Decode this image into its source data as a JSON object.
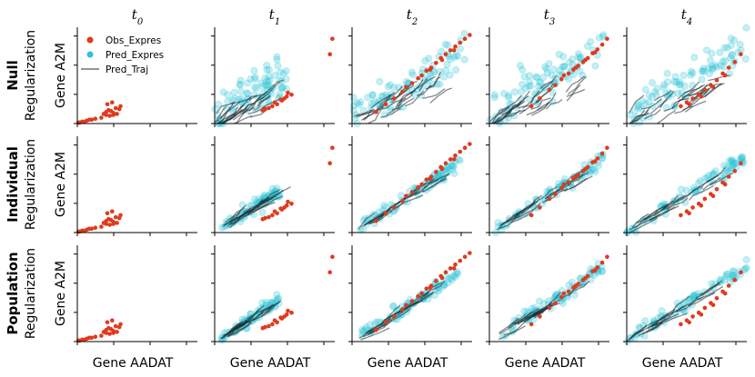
{
  "chart_data": {
    "type": "scatter",
    "description_layout": "grid 3 rows x 5 columns",
    "columns": [
      {
        "t": "t",
        "sub": "0"
      },
      {
        "t": "t",
        "sub": "1"
      },
      {
        "t": "t",
        "sub": "2"
      },
      {
        "t": "t",
        "sub": "3"
      },
      {
        "t": "t",
        "sub": "4"
      }
    ],
    "rows": [
      {
        "bold": "Null",
        "regular": "Regularization"
      },
      {
        "bold": "Individual",
        "regular": "Regularization"
      },
      {
        "bold": "Population",
        "regular": "Regularization"
      }
    ],
    "ylabel": "Gene A2M",
    "xlabel": "Gene AADAT",
    "xlim": [
      0,
      1
    ],
    "ylim": [
      0,
      1
    ],
    "legend": {
      "position": "top-left of first panel",
      "entries": [
        {
          "label": "Obs_Expres",
          "color": "#e03a1e",
          "kind": "point"
        },
        {
          "label": "Pred_Expres",
          "color": "#2ec4d8",
          "kind": "point"
        },
        {
          "label": "Pred_Traj",
          "color": "#707070",
          "kind": "line"
        }
      ]
    },
    "observed_points": [
      {
        "col": 0,
        "x": [
          0.01,
          0.02,
          0.04,
          0.06,
          0.08,
          0.1,
          0.12,
          0.15,
          0.2,
          0.22,
          0.24,
          0.26,
          0.28,
          0.3,
          0.32,
          0.35,
          0.24,
          0.27,
          0.3,
          0.33,
          0.36,
          0.25,
          0.29
        ],
        "y": [
          0.01,
          0.01,
          0.02,
          0.02,
          0.03,
          0.04,
          0.04,
          0.05,
          0.06,
          0.1,
          0.12,
          0.14,
          0.13,
          0.11,
          0.16,
          0.15,
          0.09,
          0.08,
          0.09,
          0.1,
          0.18,
          0.2,
          0.22
        ]
      },
      {
        "col": 1,
        "x": [
          0.55,
          0.5,
          0.6,
          0.64,
          0.58,
          0.52,
          0.48,
          0.42,
          0.4,
          0.61,
          0.56,
          0.45,
          0.96,
          0.98
        ],
        "y": [
          0.25,
          0.22,
          0.28,
          0.3,
          0.26,
          0.2,
          0.18,
          0.15,
          0.14,
          0.32,
          0.24,
          0.16,
          0.72,
          0.88
        ]
      },
      {
        "col": 2,
        "x": [
          0.2,
          0.28,
          0.35,
          0.42,
          0.5,
          0.58,
          0.62,
          0.66,
          0.7,
          0.74,
          0.78,
          0.82,
          0.86,
          0.9,
          0.94,
          0.98,
          0.45,
          0.55,
          0.65,
          0.75,
          0.85
        ],
        "y": [
          0.12,
          0.2,
          0.26,
          0.33,
          0.42,
          0.5,
          0.55,
          0.58,
          0.63,
          0.68,
          0.72,
          0.76,
          0.8,
          0.84,
          0.88,
          0.92,
          0.38,
          0.47,
          0.56,
          0.66,
          0.76
        ]
      },
      {
        "col": 3,
        "x": [
          0.35,
          0.42,
          0.5,
          0.55,
          0.6,
          0.66,
          0.7,
          0.74,
          0.78,
          0.82,
          0.86,
          0.9,
          0.94,
          0.98,
          0.62,
          0.72,
          0.8,
          0.88
        ],
        "y": [
          0.18,
          0.26,
          0.35,
          0.4,
          0.46,
          0.52,
          0.56,
          0.6,
          0.64,
          0.68,
          0.73,
          0.77,
          0.82,
          0.88,
          0.5,
          0.58,
          0.66,
          0.74
        ]
      },
      {
        "col": 4,
        "x": [
          0.45,
          0.5,
          0.55,
          0.6,
          0.65,
          0.7,
          0.75,
          0.8,
          0.85,
          0.9,
          0.95,
          0.52,
          0.62,
          0.72,
          0.82
        ],
        "y": [
          0.18,
          0.22,
          0.26,
          0.3,
          0.35,
          0.4,
          0.45,
          0.52,
          0.58,
          0.64,
          0.72,
          0.2,
          0.28,
          0.38,
          0.5
        ]
      }
    ],
    "predicted_spread": [
      {
        "row": 0,
        "col": 1,
        "xrange": [
          0.0,
          0.6
        ],
        "spread": "wide-cloud"
      },
      {
        "row": 0,
        "col": 2,
        "xrange": [
          0.0,
          0.95
        ],
        "spread": "wide-cloud"
      },
      {
        "row": 0,
        "col": 3,
        "xrange": [
          0.0,
          0.95
        ],
        "spread": "wide-cloud"
      },
      {
        "row": 0,
        "col": 4,
        "xrange": [
          0.0,
          1.0
        ],
        "spread": "wide-cloud"
      },
      {
        "row": 1,
        "col": 1,
        "xrange": [
          0.05,
          0.55
        ],
        "spread": "narrow-band"
      },
      {
        "row": 1,
        "col": 2,
        "xrange": [
          0.05,
          0.9
        ],
        "spread": "narrow-band"
      },
      {
        "row": 1,
        "col": 3,
        "xrange": [
          0.05,
          0.95
        ],
        "spread": "narrow-band"
      },
      {
        "row": 1,
        "col": 4,
        "xrange": [
          0.0,
          1.0
        ],
        "spread": "narrow-band"
      },
      {
        "row": 2,
        "col": 1,
        "xrange": [
          0.05,
          0.55
        ],
        "spread": "narrow-band"
      },
      {
        "row": 2,
        "col": 2,
        "xrange": [
          0.05,
          0.9
        ],
        "spread": "narrow-band"
      },
      {
        "row": 2,
        "col": 3,
        "xrange": [
          0.05,
          0.95
        ],
        "spread": "narrow-band"
      },
      {
        "row": 2,
        "col": 4,
        "xrange": [
          0.0,
          1.0
        ],
        "spread": "narrow-band"
      }
    ]
  }
}
